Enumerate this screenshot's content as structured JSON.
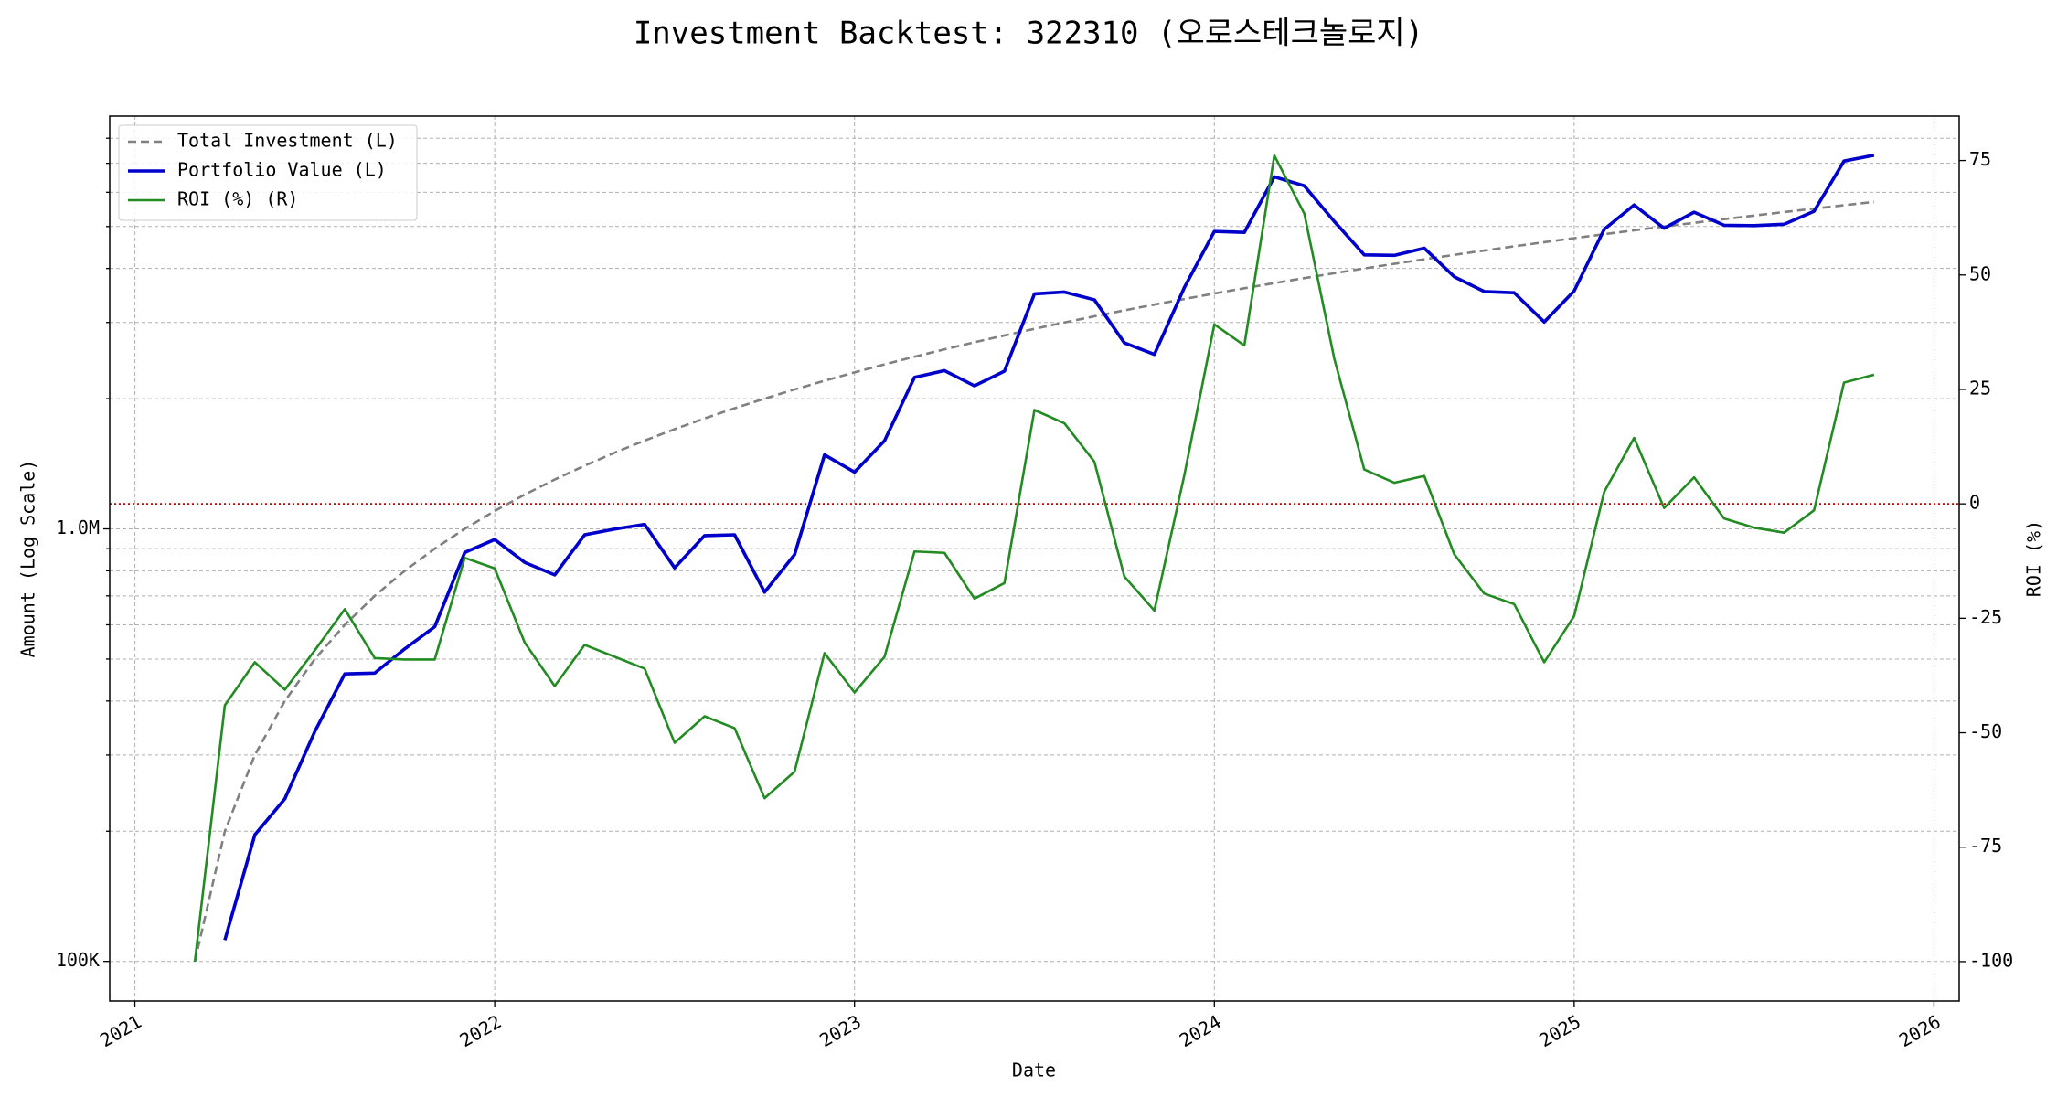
{
  "chart_data": {
    "type": "line",
    "title": "Investment Backtest: 322310 (오로스테크놀로지)",
    "xlabel": "Date",
    "ylabel": "Amount (Log Scale)",
    "y2label": "ROI (%)",
    "x": [
      "2021-03",
      "2021-04",
      "2021-05",
      "2021-06",
      "2021-07",
      "2021-08",
      "2021-09",
      "2021-10",
      "2021-11",
      "2021-12",
      "2022-01",
      "2022-02",
      "2022-03",
      "2022-04",
      "2022-05",
      "2022-06",
      "2022-07",
      "2022-08",
      "2022-09",
      "2022-10",
      "2022-11",
      "2022-12",
      "2023-01",
      "2023-02",
      "2023-03",
      "2023-04",
      "2023-05",
      "2023-06",
      "2023-07",
      "2023-08",
      "2023-09",
      "2023-10",
      "2023-11",
      "2023-12",
      "2024-01",
      "2024-02",
      "2024-03",
      "2024-04",
      "2024-05",
      "2024-06",
      "2024-07",
      "2024-08",
      "2024-09",
      "2024-10",
      "2024-11",
      "2024-12",
      "2025-01",
      "2025-02",
      "2025-03",
      "2025-04",
      "2025-05",
      "2025-06",
      "2025-07",
      "2025-08",
      "2025-09",
      "2025-10",
      "2025-11"
    ],
    "xlim": [
      2020.93,
      2026.07
    ],
    "xticks": [
      2021,
      2022,
      2023,
      2024,
      2025,
      2026
    ],
    "ylim": [
      81000,
      9000000
    ],
    "yscale": "log",
    "yticks": [
      {
        "value": 100000,
        "label": "100K"
      },
      {
        "value": 1000000,
        "label": "1.0M"
      }
    ],
    "yminorticks": [
      200000,
      300000,
      400000,
      500000,
      600000,
      700000,
      800000,
      900000,
      2000000,
      3000000,
      4000000,
      5000000,
      6000000,
      7000000,
      8000000
    ],
    "y2lim": [
      -108.6,
      84.7
    ],
    "y2ticks": [
      -100,
      -75,
      -50,
      -25,
      0,
      25,
      50,
      75
    ],
    "ycolor": "#0000cd",
    "y2color": "#228b22",
    "grid": true,
    "legend": "upper left",
    "reference_lines": [
      {
        "axis": "y2",
        "value": 0,
        "color": "#cc0000"
      }
    ],
    "series": [
      {
        "name": "Total Investment (L)",
        "color": "#808080",
        "style": "dashed",
        "values": [
          100000,
          200000,
          300000,
          400000,
          500000,
          600000,
          700000,
          800000,
          900000,
          1000000,
          1100000,
          1200000,
          1300000,
          1400000,
          1500000,
          1600000,
          1700000,
          1800000,
          1900000,
          2000000,
          2100000,
          2200000,
          2300000,
          2400000,
          2500000,
          2600000,
          2700000,
          2800000,
          2900000,
          3000000,
          3100000,
          3200000,
          3300000,
          3400000,
          3500000,
          3600000,
          3700000,
          3800000,
          3900000,
          4000000,
          4100000,
          4200000,
          4300000,
          4400000,
          4500000,
          4600000,
          4700000,
          4800000,
          4900000,
          5000000,
          5100000,
          5200000,
          5300000,
          5400000,
          5500000,
          5600000,
          5700000
        ]
      },
      {
        "name": "Portfolio Value (L)",
        "color": "#0000cd",
        "style": "solid",
        "values": [
          null,
          112000,
          196200,
          237600,
          340000,
          462000,
          464100,
          528000,
          594000,
          882000,
          944900,
          836400,
          782600,
          968800,
          999000,
          1024000,
          812600,
          964800,
          969000,
          714000,
          871500,
          1482800,
          1352400,
          1598400,
          2240000,
          2321800,
          2141100,
          2315600,
          3494500,
          3528000,
          3385200,
          2691200,
          2531100,
          3614200,
          4872000,
          4845600,
          6515700,
          6209200,
          5136300,
          4300000,
          4288600,
          4456200,
          3827000,
          3537600,
          3514500,
          3008400,
          3548500,
          4924800,
          5605600,
          4955000,
          5395800,
          5033600,
          5024400,
          5059800,
          5423000,
          7084000,
          7307400
        ]
      },
      {
        "name": "ROI (%) (R)",
        "color": "#228b22",
        "style": "solid",
        "axis": "y2",
        "values": [
          -100,
          -44,
          -34.6,
          -40.6,
          -32,
          -23,
          -33.7,
          -34,
          -34,
          -11.8,
          -14.1,
          -30.3,
          -39.8,
          -30.8,
          -33.4,
          -36,
          -52.2,
          -46.4,
          -49,
          -64.3,
          -58.5,
          -32.6,
          -41.2,
          -33.4,
          -10.4,
          -10.7,
          -20.7,
          -17.3,
          20.5,
          17.6,
          9.2,
          -15.9,
          -23.3,
          6.3,
          39.2,
          34.6,
          76.1,
          63.4,
          31.7,
          7.5,
          4.6,
          6.1,
          -11,
          -19.6,
          -21.9,
          -34.6,
          -24.5,
          2.6,
          14.4,
          -0.9,
          5.8,
          -3.2,
          -5.2,
          -6.3,
          -1.4,
          26.5,
          28.2
        ]
      }
    ]
  }
}
